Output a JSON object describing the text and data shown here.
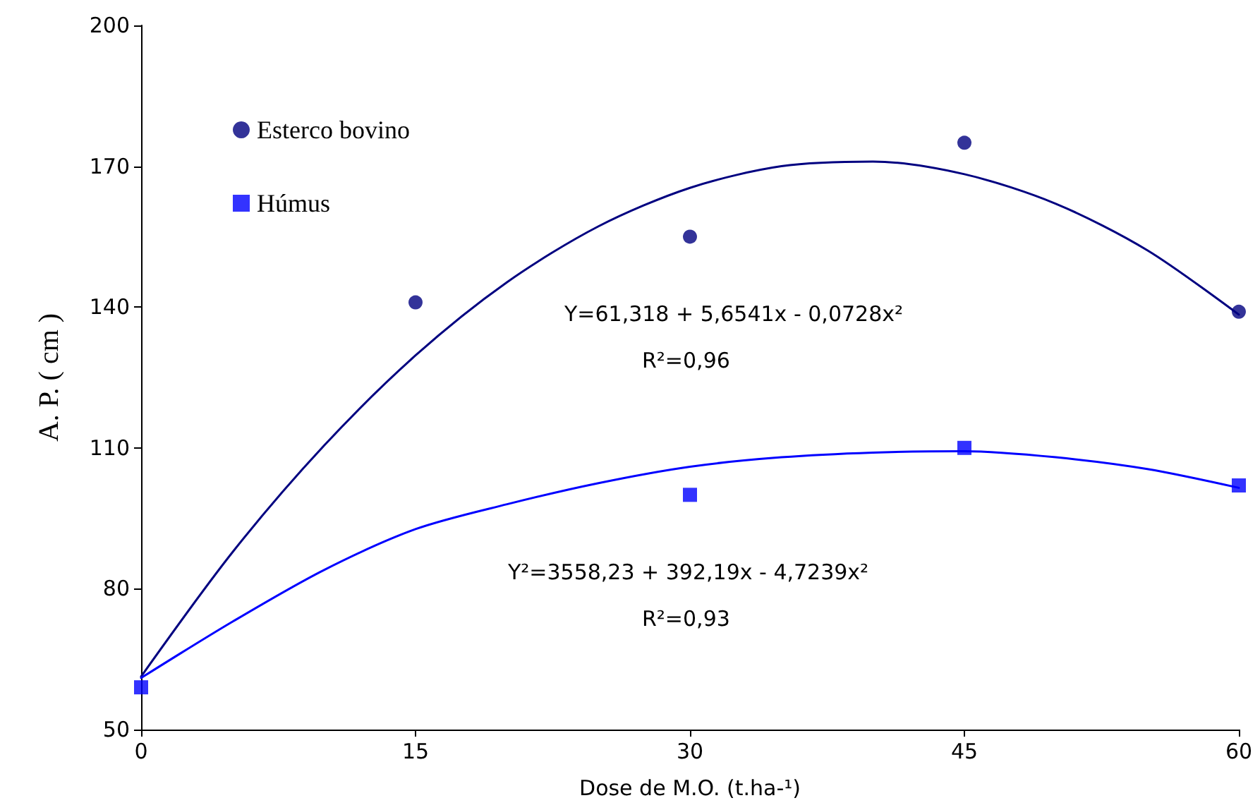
{
  "chart_data": {
    "type": "scatter",
    "xlabel": "Dose de M.O. (t.ha-¹)",
    "ylabel": "A. P. ( cm )",
    "xlim": [
      0,
      60
    ],
    "xticks": [
      0,
      15,
      30,
      45,
      60
    ],
    "ylim": [
      50,
      200
    ],
    "yticks": [
      50,
      80,
      110,
      140,
      170,
      200
    ],
    "grid": false,
    "legend": "top left",
    "series": [
      {
        "name": "Esterco bovino",
        "color": "#000080",
        "marker": "circle",
        "x": [
          15,
          30,
          45,
          60
        ],
        "values": [
          141,
          155,
          175,
          139
        ]
      },
      {
        "name": "Húmus",
        "color": "#0000ff",
        "marker": "square",
        "x": [
          0,
          30,
          45,
          60
        ],
        "values": [
          59,
          100,
          110,
          102
        ]
      },
      {
        "type": "line",
        "color": "#000080",
        "marker": "none",
        "x": [
          0,
          5,
          10,
          15,
          20,
          25,
          30,
          35,
          40,
          45,
          50,
          55,
          60
        ],
        "values": [
          61.3,
          87.8,
          110.5,
          129.7,
          145.3,
          157.2,
          165.4,
          170,
          171,
          168.3,
          162,
          152.1,
          138.4
        ]
      },
      {
        "type": "line",
        "color": "#0000ff",
        "marker": "none",
        "x": [
          0,
          5,
          10,
          15,
          20,
          25,
          30,
          35,
          40,
          45,
          50,
          55,
          60
        ],
        "values": [
          61,
          73,
          84,
          92.7,
          98,
          102.5,
          106,
          108,
          109,
          109.3,
          108,
          105.5,
          101.5
        ]
      }
    ],
    "annotations": [
      "Y=61,318 + 5,6541x - 0,0728x²",
      "R²=0,96",
      "Y²=3558,23 + 392,19x - 4,7239x²",
      "R²=0,93"
    ]
  }
}
